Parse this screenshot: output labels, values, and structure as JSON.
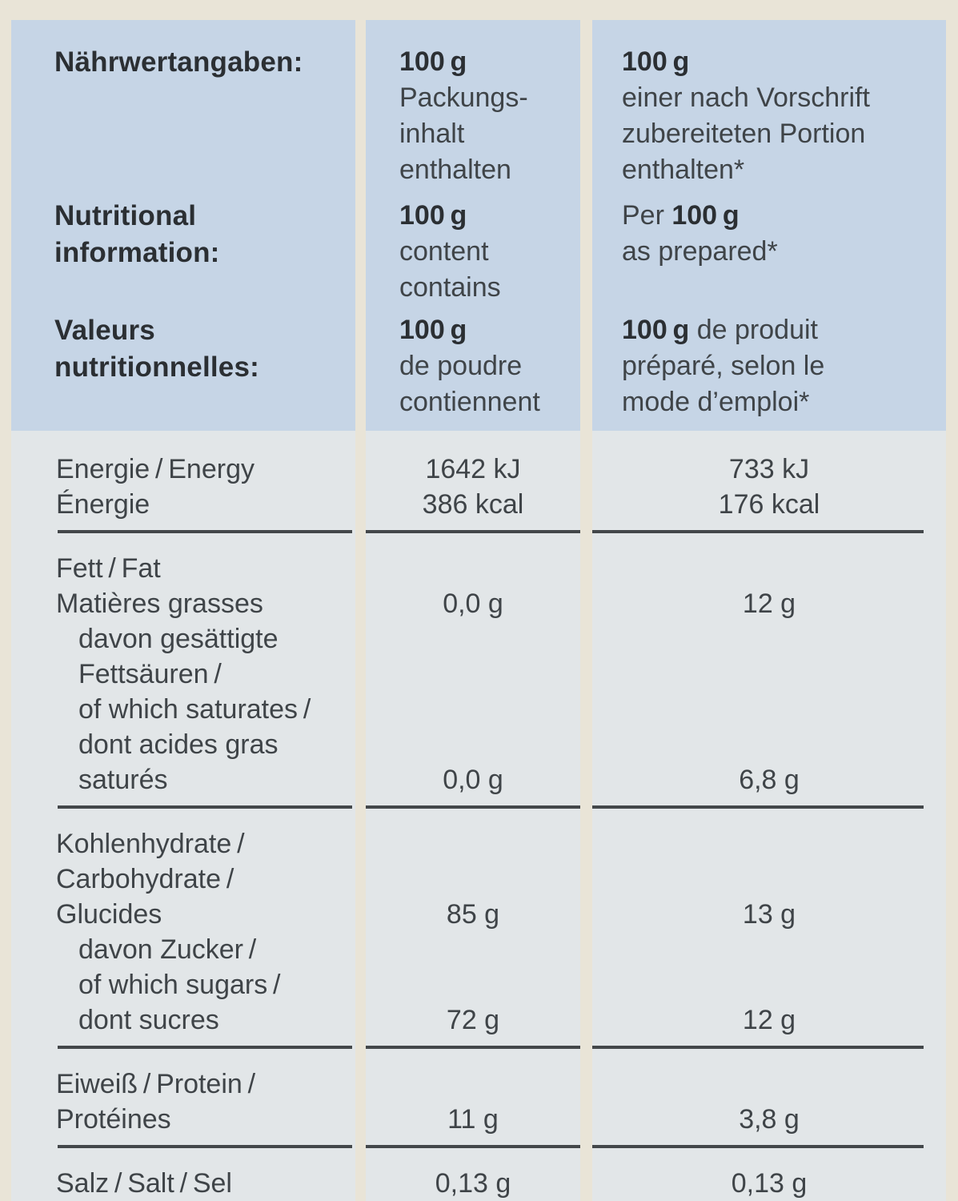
{
  "colors": {
    "page_bg": "#e9e4d7",
    "header_bg": "#c6d5e6",
    "body_bg": "#e2e6e8",
    "heading_text": "#2b2f33",
    "body_text": "#3f4448",
    "rule": "#43474a"
  },
  "header": {
    "rows": [
      {
        "id": "de",
        "title_lines": [
          "Nährwertangaben:"
        ],
        "col_100g_lines": [
          [
            {
              "t": "100 g",
              "b": true
            }
          ],
          [
            {
              "t": "Packungs-"
            }
          ],
          [
            {
              "t": "inhalt"
            }
          ],
          [
            {
              "t": "enthalten"
            }
          ]
        ],
        "col_portion_lines": [
          [
            {
              "t": "100 g",
              "b": true
            }
          ],
          [
            {
              "t": "einer nach Vorschrift"
            }
          ],
          [
            {
              "t": "zubereiteten Portion"
            }
          ],
          [
            {
              "t": "enthalten*"
            }
          ]
        ]
      },
      {
        "id": "en",
        "title_lines": [
          "Nutritional",
          "information:"
        ],
        "col_100g_lines": [
          [
            {
              "t": "100 g",
              "b": true
            }
          ],
          [
            {
              "t": "content"
            }
          ],
          [
            {
              "t": "contains"
            }
          ]
        ],
        "col_portion_lines": [
          [
            {
              "t": "Per "
            },
            {
              "t": "100 g",
              "b": true
            }
          ],
          [
            {
              "t": "as prepared*"
            }
          ]
        ]
      },
      {
        "id": "fr",
        "title_lines": [
          "Valeurs",
          "nutritionnelles:"
        ],
        "col_100g_lines": [
          [
            {
              "t": "100 g",
              "b": true
            }
          ],
          [
            {
              "t": "de poudre"
            }
          ],
          [
            {
              "t": "contiennent"
            }
          ]
        ],
        "col_portion_lines": [
          [
            {
              "t": "100 g",
              "b": true
            },
            {
              "t": " de produit"
            }
          ],
          [
            {
              "t": "préparé, selon le"
            }
          ],
          [
            {
              "t": "mode d’emploi*"
            }
          ]
        ]
      }
    ]
  },
  "body": {
    "rows": [
      {
        "id": "energy",
        "lines": [
          {
            "t": "Energie / Energy"
          },
          {
            "t": "Énergie"
          }
        ],
        "values_100g": {
          "0": "1642 kJ",
          "1": "386 kcal"
        },
        "values_portion": {
          "0": "733 kJ",
          "1": "176 kcal"
        }
      },
      {
        "id": "fat",
        "lines": [
          {
            "t": "Fett / Fat"
          },
          {
            "t": "Matières grasses"
          },
          {
            "t": "davon gesättigte",
            "ind": true
          },
          {
            "t": "Fettsäuren /",
            "ind": true
          },
          {
            "t": "of which saturates /",
            "ind": true
          },
          {
            "t": "dont acides gras",
            "ind": true
          },
          {
            "t": "saturés",
            "ind": true
          }
        ],
        "values_100g": {
          "1": "0,0 g",
          "6": "0,0 g"
        },
        "values_portion": {
          "1": "12 g",
          "6": "6,8 g"
        }
      },
      {
        "id": "carbohydrate",
        "lines": [
          {
            "t": "Kohlenhydrate /"
          },
          {
            "t": "Carbohydrate /"
          },
          {
            "t": "Glucides"
          },
          {
            "t": "davon Zucker /",
            "ind": true
          },
          {
            "t": "of which sugars /",
            "ind": true
          },
          {
            "t": "dont sucres",
            "ind": true
          }
        ],
        "values_100g": {
          "2": "85 g",
          "5": "72 g"
        },
        "values_portion": {
          "2": "13 g",
          "5": "12 g"
        }
      },
      {
        "id": "protein",
        "lines": [
          {
            "t": "Eiweiß / Protein /"
          },
          {
            "t": "Protéines"
          }
        ],
        "values_100g": {
          "1": "11 g"
        },
        "values_portion": {
          "1": "3,8 g"
        }
      },
      {
        "id": "salt",
        "lines": [
          {
            "t": "Salz / Salt / Sel"
          }
        ],
        "values_100g": {
          "0": "0,13 g"
        },
        "values_portion": {
          "0": "0,13 g"
        }
      }
    ]
  }
}
